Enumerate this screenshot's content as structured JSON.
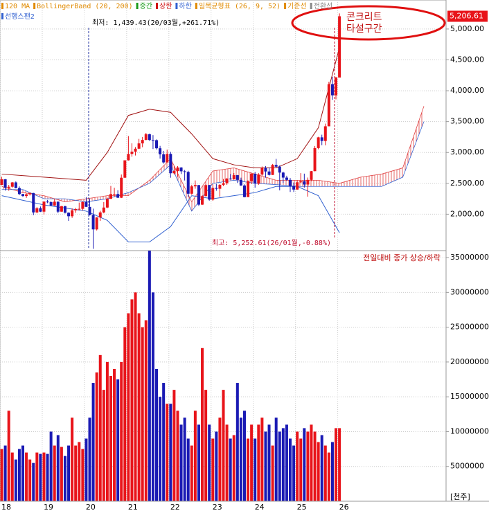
{
  "chart_data": [
    {
      "type": "candlestick",
      "xlim": [
        -0.5,
        126.3
      ],
      "ylim": [
        1410,
        5470
      ],
      "xticks": [
        {
          "value": 0,
          "label": "18"
        },
        {
          "value": 12,
          "label": "19"
        },
        {
          "value": 24,
          "label": "20"
        },
        {
          "value": 36,
          "label": "21"
        },
        {
          "value": 48,
          "label": "22"
        },
        {
          "value": 60,
          "label": "23"
        },
        {
          "value": 72,
          "label": "24"
        },
        {
          "value": 84,
          "label": "25"
        },
        {
          "value": 96,
          "label": "26"
        }
      ],
      "yticks": [
        {
          "value": 2000,
          "label": "2,000.00"
        },
        {
          "value": 2500,
          "label": "2,500.00"
        },
        {
          "value": 3000,
          "label": "3,000.00"
        },
        {
          "value": 3500,
          "label": "3,500.00"
        },
        {
          "value": 4000,
          "label": "4,000.00"
        },
        {
          "value": 4500,
          "label": "4,500.00"
        },
        {
          "value": 5000,
          "label": "5,000.00"
        }
      ],
      "grid": true,
      "up_color": "#e8141a",
      "down_color": "#1a1ab4",
      "open": [
        2475,
        2566,
        2427,
        2445,
        2515,
        2423,
        2326,
        2295,
        2322,
        2343,
        2029,
        2096,
        2041,
        2204,
        2195,
        2140,
        2203,
        2041,
        2130,
        2024,
        1967,
        2063,
        2083,
        2087,
        2197,
        2119,
        1987,
        1754,
        1947,
        2029,
        2108,
        2249,
        2326,
        2327,
        2267,
        2591,
        2873,
        2976,
        3013,
        3061,
        3147,
        3203,
        3296,
        3202,
        3199,
        3068,
        2970,
        2839,
        2977,
        2663,
        2699,
        2757,
        2695,
        2685,
        2332,
        2451,
        2472,
        2155,
        2293,
        2472,
        2236,
        2425,
        2412,
        2476,
        2501,
        2577,
        2564,
        2632,
        2556,
        2465,
        2277,
        2535,
        2655,
        2497,
        2642,
        2747,
        2692,
        2636,
        2798,
        2770,
        2674,
        2593,
        2556,
        2455,
        2399,
        2517,
        2532,
        2481,
        2556,
        2697,
        3071,
        3245,
        3186,
        3424,
        4107,
        3926,
        4214
      ],
      "high": [
        2607,
        2569,
        2475,
        2520,
        2531,
        2450,
        2330,
        2335,
        2350,
        2346,
        2115,
        2125,
        2210,
        2231,
        2211,
        2252,
        2206,
        2134,
        2136,
        2030,
        2093,
        2103,
        2188,
        2210,
        2277,
        2245,
        2090,
        1952,
        2055,
        2197,
        2269,
        2458,
        2428,
        2388,
        2643,
        2873,
        3266,
        3148,
        3088,
        3220,
        3251,
        3316,
        3305,
        3281,
        3212,
        3107,
        3026,
        3046,
        3010,
        2777,
        2779,
        2761,
        2716,
        2703,
        2477,
        2547,
        2473,
        2305,
        2490,
        2474,
        2485,
        2490,
        2488,
        2571,
        2585,
        2650,
        2667,
        2637,
        2592,
        2484,
        2548,
        2667,
        2685,
        2665,
        2773,
        2780,
        2757,
        2814,
        2896,
        2790,
        2689,
        2623,
        2586,
        2514,
        2547,
        2665,
        2657,
        2594,
        2700,
        3105,
        3254,
        3288,
        3467,
        4146,
        4226,
        4226,
        5252.61
      ],
      "low": [
        2470,
        2382,
        2380,
        2430,
        2418,
        2309,
        2280,
        2265,
        2302,
        1985,
        2015,
        2035,
        1993,
        2178,
        2139,
        2136,
        2016,
        2040,
        2011,
        1891,
        1940,
        2022,
        2060,
        2062,
        2119,
        1980,
        1439.43,
        1736,
        1892,
        2014,
        2097,
        2247,
        2278,
        2263,
        2261,
        2589,
        2869,
        2931,
        2951,
        3055,
        3085,
        3198,
        3187,
        3056,
        3048,
        2901,
        2819,
        2837,
        2591,
        2645,
        2605,
        2651,
        2546,
        2276,
        2314,
        2413,
        2134,
        2150,
        2288,
        2219,
        2218,
        2380,
        2285,
        2457,
        2475,
        2560,
        2564,
        2509,
        2458,
        2273,
        2277,
        2488,
        2429,
        2475,
        2624,
        2591,
        2626,
        2634,
        2755,
        2386,
        2508,
        2541,
        2360,
        2360,
        2395,
        2505,
        2431,
        2284,
        2535,
        2695,
        3052,
        3118,
        3116,
        3424,
        3853,
        3860,
        4214
      ],
      "close": [
        2566,
        2427,
        2445,
        2515,
        2423,
        2326,
        2295,
        2322,
        2343,
        2029,
        2096,
        2041,
        2204,
        2195,
        2140,
        2203,
        2041,
        2130,
        2024,
        1967,
        2063,
        2083,
        2087,
        2197,
        2119,
        1987,
        1754,
        1947,
        2029,
        2108,
        2249,
        2326,
        2327,
        2267,
        2591,
        2873,
        2976,
        3013,
        3061,
        3147,
        3203,
        3296,
        3202,
        3199,
        3068,
        2970,
        2839,
        2977,
        2663,
        2699,
        2757,
        2695,
        2685,
        2332,
        2451,
        2472,
        2155,
        2293,
        2472,
        2236,
        2425,
        2412,
        2476,
        2501,
        2577,
        2564,
        2632,
        2556,
        2465,
        2277,
        2535,
        2655,
        2497,
        2642,
        2747,
        2692,
        2636,
        2798,
        2770,
        2674,
        2593,
        2556,
        2455,
        2399,
        2517,
        2532,
        2481,
        2556,
        2697,
        3071,
        3245,
        3186,
        3424,
        4107,
        3926,
        4214,
        5206.61
      ],
      "series": [
        {
          "name": "상한",
          "color": "#a01010",
          "x": [
            0,
            12,
            24,
            30,
            36,
            42,
            48,
            54,
            60,
            66,
            72,
            78,
            84,
            90,
            96
          ],
          "values": [
            2650,
            2600,
            2550,
            3000,
            3600,
            3700,
            3650,
            3300,
            2900,
            2800,
            2750,
            2750,
            2900,
            3400,
            4700
          ]
        },
        {
          "name": "하한",
          "color": "#3060d0",
          "x": [
            0,
            12,
            24,
            30,
            36,
            42,
            48,
            54,
            60,
            66,
            72,
            78,
            84,
            90,
            96
          ],
          "values": [
            2300,
            2150,
            2050,
            1900,
            1550,
            1550,
            1800,
            2300,
            2250,
            2300,
            2350,
            2450,
            2450,
            2300,
            1700
          ]
        }
      ],
      "cloud": {
        "color": "#e04040",
        "x": [
          0,
          6,
          12,
          18,
          24,
          30,
          36,
          42,
          48,
          54,
          60,
          66,
          72,
          78,
          84,
          90,
          96,
          102,
          108,
          114,
          120
        ],
        "span1": [
          2450,
          2350,
          2300,
          2200,
          2250,
          2300,
          2300,
          2550,
          2900,
          2200,
          2700,
          2750,
          2650,
          2550,
          2550,
          2550,
          2500,
          2600,
          2650,
          2750,
          3750
        ],
        "span2": [
          2400,
          2400,
          2250,
          2250,
          2200,
          2250,
          2350,
          2500,
          2800,
          2050,
          2500,
          2550,
          2500,
          2480,
          2450,
          2450,
          2450,
          2450,
          2450,
          2600,
          3500
        ]
      },
      "legend": [
        {
          "text": "120 MA",
          "color": "#e08a00"
        },
        {
          "text": "BollingerBand (20, 200)",
          "color": "#e08a00"
        },
        {
          "text": "중간",
          "color": "#1a9a1a"
        },
        {
          "text": "상한",
          "color": "#d01010"
        },
        {
          "text": "하한",
          "color": "#3060d0"
        },
        {
          "text": "일목균형표 (26, 9, 52)",
          "color": "#e08a00"
        },
        {
          "text": "기준선",
          "color": "#e08a00"
        },
        {
          "text": "전환선",
          "color": "#888888"
        }
      ],
      "legend2": {
        "text": "선행스팬2",
        "color": "#3060d0"
      },
      "annotations": {
        "low": "최저: 1,439.43(20/03월,+261.71%)",
        "high": "최고: 5,252.61(26/01월,-0.88%)",
        "note1": "콘크리트",
        "note2": "타설구간"
      },
      "current_price": {
        "value": 5206.61,
        "label": "5,206.61"
      }
    },
    {
      "type": "bar",
      "ylim": [
        0,
        36000000
      ],
      "title": "전일대비 종가 상승/하락",
      "unit": "[천주]",
      "yticks": [
        5000000,
        10000000,
        15000000,
        20000000,
        25000000,
        30000000,
        35000000
      ],
      "values": [
        7500000,
        8000000,
        13000000,
        7000000,
        6000000,
        7500000,
        8000000,
        7000000,
        6000000,
        5500000,
        7000000,
        6800000,
        7000000,
        6800000,
        10000000,
        8000000,
        9500000,
        7800000,
        6500000,
        8000000,
        12000000,
        8000000,
        8500000,
        7500000,
        9000000,
        12000000,
        17000000,
        18500000,
        21000000,
        16000000,
        20000000,
        18000000,
        19000000,
        17500000,
        20000000,
        25000000,
        27000000,
        29000000,
        30000000,
        27000000,
        25000000,
        26000000,
        36000000,
        30000000,
        19000000,
        15000000,
        17000000,
        14000000,
        14000000,
        16000000,
        13000000,
        11000000,
        12000000,
        9000000,
        8000000,
        13000000,
        11000000,
        22000000,
        16000000,
        11000000,
        9000000,
        10000000,
        12000000,
        16000000,
        11000000,
        9000000,
        9500000,
        17000000,
        12000000,
        13000000,
        9000000,
        11000000,
        9000000,
        11000000,
        12000000,
        10000000,
        11000000,
        8000000,
        12000000,
        10000000,
        10500000,
        11000000,
        9000000,
        8000000,
        10000000,
        9000000,
        10500000,
        10000000,
        11000000,
        10000000,
        8500000,
        9500000,
        8000000,
        7000000,
        8500000,
        10500000,
        10500000
      ]
    }
  ]
}
